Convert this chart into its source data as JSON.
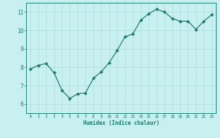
{
  "x": [
    0,
    1,
    2,
    3,
    4,
    5,
    6,
    7,
    8,
    9,
    10,
    11,
    12,
    13,
    14,
    15,
    16,
    17,
    18,
    19,
    20,
    21,
    22,
    23
  ],
  "y": [
    7.9,
    8.1,
    8.2,
    7.7,
    6.75,
    6.3,
    6.55,
    6.6,
    7.4,
    7.75,
    8.25,
    8.9,
    9.65,
    9.8,
    10.55,
    10.9,
    11.15,
    11.0,
    10.65,
    10.5,
    10.5,
    10.05,
    10.5,
    10.85
  ],
  "xlabel": "Humidex (Indice chaleur)",
  "ylim": [
    5.5,
    11.5
  ],
  "xlim": [
    -0.5,
    23.5
  ],
  "yticks": [
    6,
    7,
    8,
    9,
    10,
    11
  ],
  "xticks": [
    0,
    1,
    2,
    3,
    4,
    5,
    6,
    7,
    8,
    9,
    10,
    11,
    12,
    13,
    14,
    15,
    16,
    17,
    18,
    19,
    20,
    21,
    22,
    23
  ],
  "line_color": "#1a7a6e",
  "marker_color": "#1a7a6e",
  "bg_color": "#c8f0f0",
  "grid_color": "#b0dede",
  "label_color": "#1a7a6e",
  "spine_color": "#1a7a6e",
  "tick_color": "#1a7a6e"
}
